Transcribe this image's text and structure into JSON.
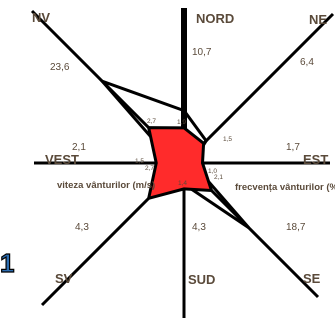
{
  "chart_data": {
    "type": "radar",
    "directions": [
      "NORD",
      "NE",
      "EST",
      "SE",
      "SUD",
      "SV",
      "VEST",
      "NV"
    ],
    "series": [
      {
        "name": "frecvența vânturilor (%)",
        "values": [
          10.7,
          6.4,
          1.7,
          18.7,
          4.3,
          4.3,
          2.1,
          23.6
        ],
        "labels": [
          "10,7",
          "6,4",
          "1,7",
          "18,7",
          "4,3",
          "4,3",
          "2,1",
          "23,6"
        ]
      },
      {
        "name": "viteza vânturilor (m/s)",
        "values": [
          1.9,
          1.5,
          1.0,
          2.1,
          1.4,
          2.7,
          1.5,
          2.7
        ],
        "labels": [
          "1,9",
          "1,5",
          "1,0",
          "2,1",
          "1,4",
          "2,7",
          "1,5",
          "2,7"
        ]
      }
    ],
    "colors": {
      "speed_fill": "#ff2b2b",
      "line": "#000000",
      "label": "#5a4a3a",
      "legend_icon": "#2b6cb0"
    }
  },
  "legend_icon_glyph": "1"
}
